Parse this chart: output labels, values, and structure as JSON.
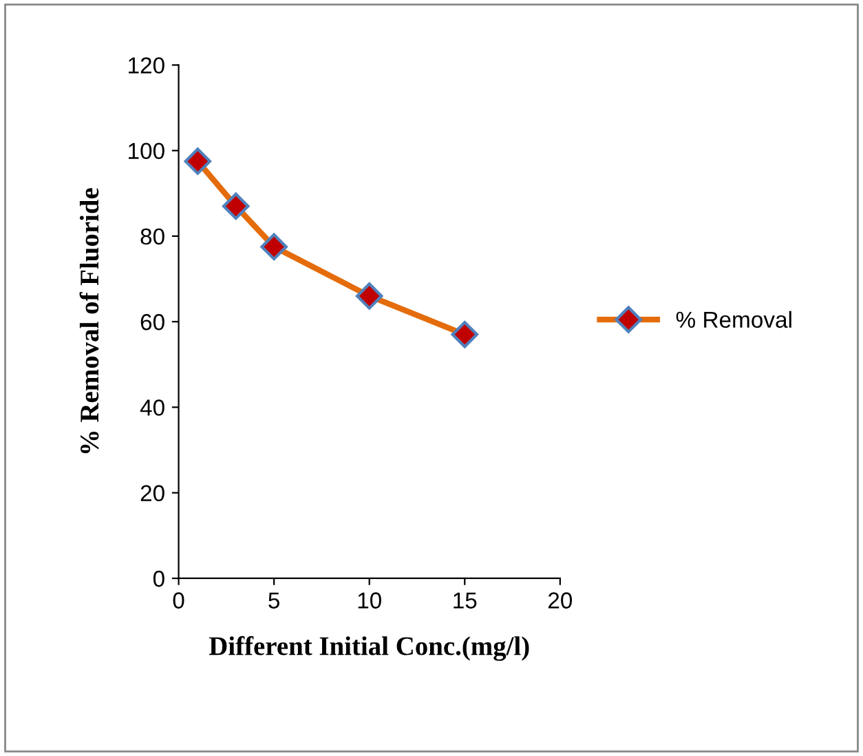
{
  "chart_data": {
    "type": "line",
    "xlabel": "Different Initial Conc.(mg/l)",
    "ylabel": "% Removal of Fluoride",
    "x": [
      1,
      3,
      5,
      10,
      15
    ],
    "series": [
      {
        "name": "% Removal",
        "color": "#e46c0a",
        "values": [
          97.5,
          87,
          77.5,
          66,
          57
        ]
      }
    ],
    "xlim": [
      0,
      20
    ],
    "xticks": [
      0,
      5,
      10,
      15,
      20
    ],
    "ylim": [
      0,
      120
    ],
    "yticks": [
      0,
      20,
      40,
      60,
      80,
      100,
      120
    ],
    "marker": "diamond",
    "grid": false,
    "legend": "right"
  }
}
